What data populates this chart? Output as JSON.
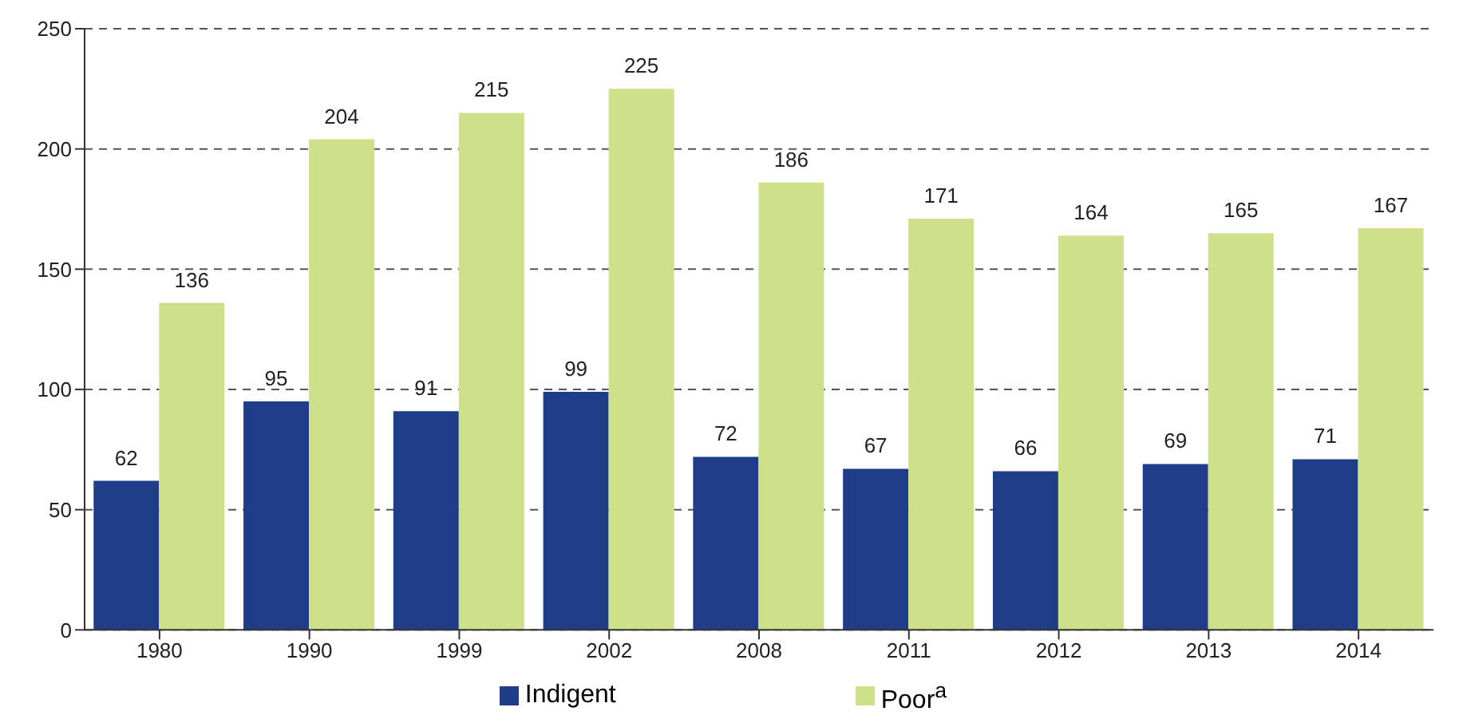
{
  "chart_data": {
    "type": "bar",
    "categories": [
      "1980",
      "1990",
      "1999",
      "2002",
      "2008",
      "2011",
      "2012",
      "2013",
      "2014"
    ],
    "series": [
      {
        "name": "Indigent",
        "color": "#1f3c88",
        "values": [
          62,
          95,
          91,
          99,
          72,
          67,
          66,
          69,
          71
        ]
      },
      {
        "name": "Poor$^{a}$",
        "color": "#cfe08a",
        "values": [
          136,
          204,
          215,
          225,
          186,
          171,
          164,
          165,
          167
        ]
      }
    ],
    "ylim": [
      0,
      250
    ],
    "yticks": [
      0,
      50,
      100,
      150,
      200,
      250
    ],
    "grid": "y",
    "legend": "bottom",
    "data_labels": true
  }
}
